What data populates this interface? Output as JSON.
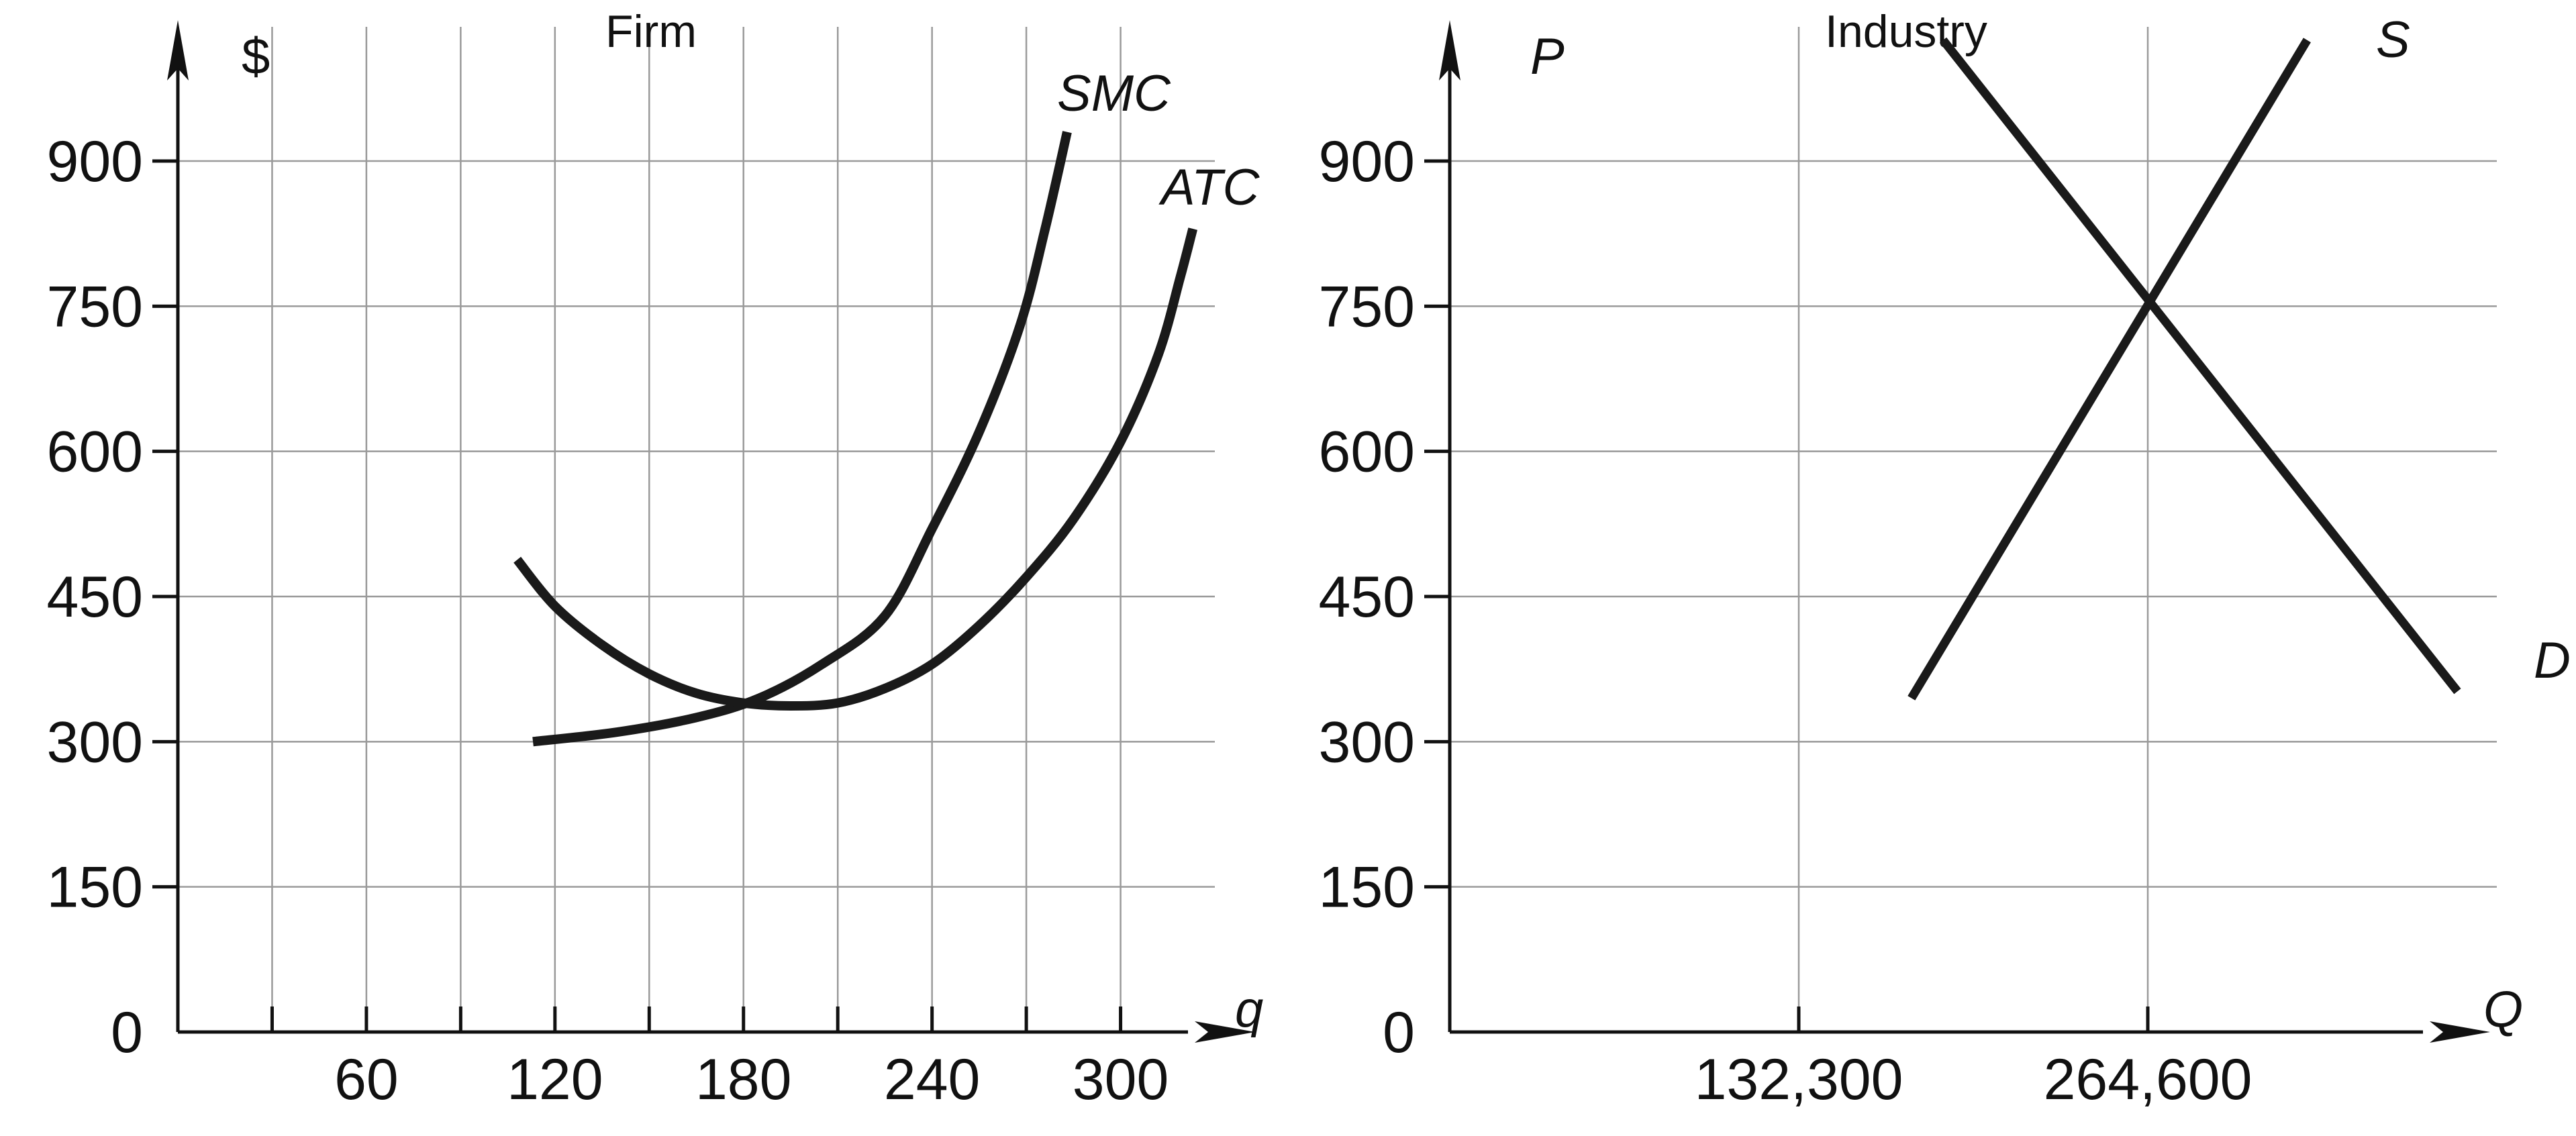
{
  "chart_data": [
    {
      "type": "line",
      "title": "Firm",
      "xlabel": "q",
      "ylabel": "$",
      "xlim": [
        0,
        330
      ],
      "ylim": [
        0,
        1020
      ],
      "x_ticks": [
        60,
        120,
        180,
        240,
        300
      ],
      "x_tick_labels": [
        "60",
        "120",
        "180",
        "240",
        "300"
      ],
      "x_gridlines": [
        30,
        60,
        90,
        120,
        150,
        180,
        210,
        240,
        270,
        300
      ],
      "y_ticks": [
        0,
        150,
        300,
        450,
        600,
        750,
        900
      ],
      "y_tick_labels": [
        "0",
        "150",
        "300",
        "450",
        "600",
        "750",
        "900"
      ],
      "grid": true,
      "series": [
        {
          "name": "SMC",
          "points": [
            [
              113,
              300
            ],
            [
              140,
              310
            ],
            [
              165,
              325
            ],
            [
              185,
              345
            ],
            [
              205,
              380
            ],
            [
              225,
              430
            ],
            [
              240,
              520
            ],
            [
              255,
              620
            ],
            [
              268,
              730
            ],
            [
              276,
              830
            ],
            [
              283,
              930
            ]
          ]
        },
        {
          "name": "ATC",
          "points": [
            [
              108,
              488
            ],
            [
              120,
              440
            ],
            [
              135,
              400
            ],
            [
              150,
              370
            ],
            [
              165,
              350
            ],
            [
              180,
              340
            ],
            [
              195,
              337
            ],
            [
              210,
              340
            ],
            [
              225,
              355
            ],
            [
              240,
              380
            ],
            [
              255,
              420
            ],
            [
              270,
              470
            ],
            [
              285,
              530
            ],
            [
              300,
              610
            ],
            [
              312,
              700
            ],
            [
              319,
              780
            ],
            [
              323,
              830
            ]
          ]
        }
      ]
    },
    {
      "type": "line",
      "title": "Industry",
      "xlabel": "Q",
      "ylabel": "P",
      "xlim": [
        0,
        396900
      ],
      "ylim": [
        0,
        1020
      ],
      "x_ticks": [
        132300,
        264600
      ],
      "x_tick_labels": [
        "132,300",
        "264,600"
      ],
      "x_gridlines": [
        132300,
        264600
      ],
      "y_ticks": [
        0,
        150,
        300,
        450,
        600,
        750,
        900
      ],
      "y_tick_labels": [
        "0",
        "150",
        "300",
        "450",
        "600",
        "750",
        "900"
      ],
      "grid": true,
      "series": [
        {
          "name": "S",
          "points": [
            [
              175000,
              345
            ],
            [
              325000,
              1025
            ]
          ]
        },
        {
          "name": "D",
          "points": [
            [
              187000,
              1025
            ],
            [
              382000,
              352
            ]
          ]
        }
      ]
    }
  ]
}
